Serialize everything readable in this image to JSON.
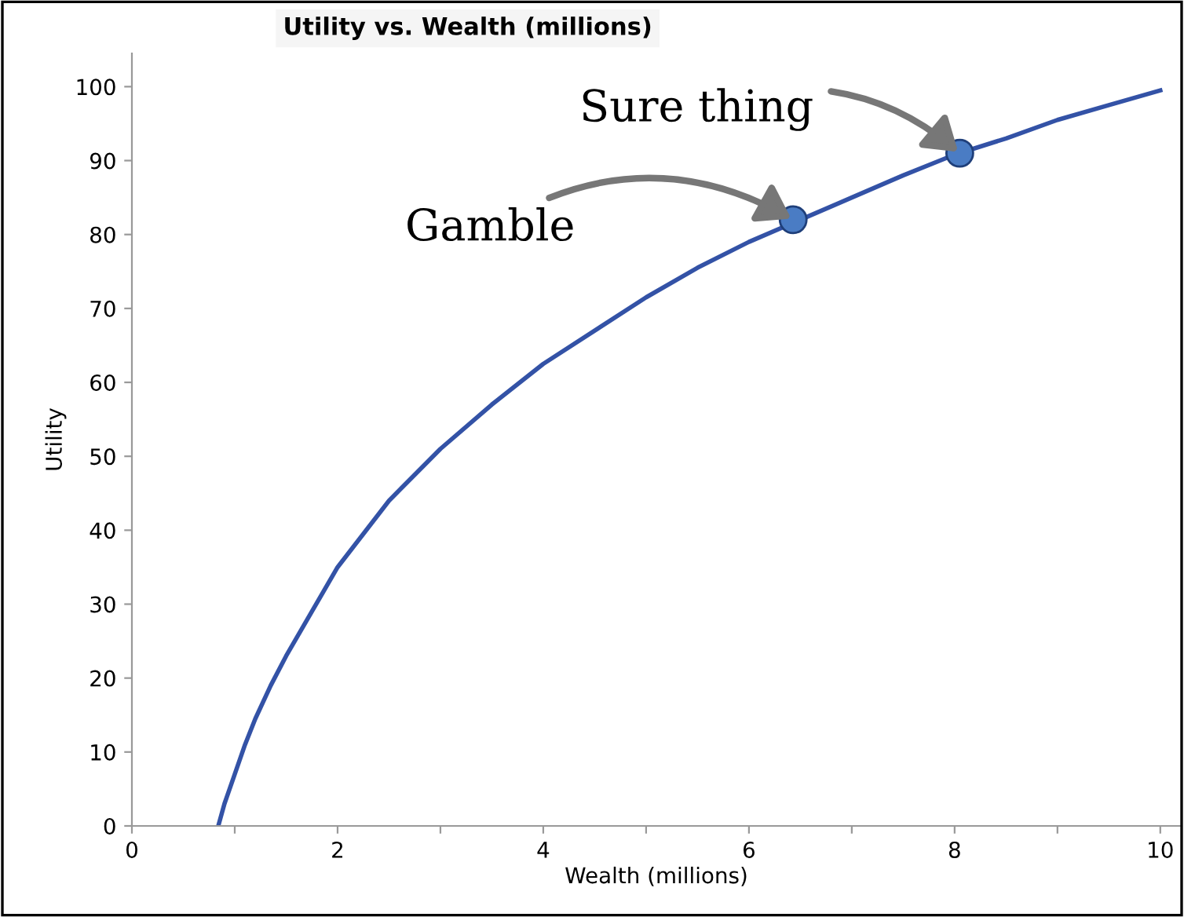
{
  "chart_data": {
    "type": "line",
    "title": "Utility vs. Wealth (millions)",
    "xlabel": "Wealth (millions)",
    "ylabel": "Utility",
    "series": [
      {
        "color": "#3352a6",
        "x": [
          0.84,
          0.9,
          1.0,
          1.1,
          1.2,
          1.35,
          1.5,
          1.75,
          2,
          2.5,
          3,
          3.5,
          4,
          4.5,
          5,
          5.5,
          6,
          6.5,
          7,
          7.5,
          8,
          8.5,
          9,
          9.5,
          10
        ],
        "values": [
          0,
          3,
          7,
          11,
          14.5,
          19,
          23,
          29,
          35,
          44,
          51,
          57,
          62.5,
          67,
          71.5,
          75.5,
          79,
          82,
          85,
          88,
          90.8,
          93,
          95.5,
          97.5,
          99.5
        ]
      },
      {
        "type": "scatter",
        "color": "#4a7cc4",
        "marker": "circle",
        "x": [
          6.43,
          8.05
        ],
        "values": [
          82,
          91
        ]
      }
    ],
    "annotations": [
      {
        "text": "Gamble",
        "x": 6.43,
        "y": 82
      },
      {
        "text": "Sure thing",
        "x": 8.05,
        "y": 91
      }
    ],
    "xlim": [
      0,
      10.2
    ],
    "ylim": [
      0,
      104.5
    ],
    "xticks": [
      0,
      {
        "value": 1,
        "label": null
      },
      2,
      {
        "value": 3,
        "label": null
      },
      4,
      {
        "value": 5,
        "label": null
      },
      6,
      {
        "value": 7,
        "label": null
      },
      8,
      {
        "value": 9,
        "label": null
      },
      10
    ],
    "yticks": [
      0,
      10,
      20,
      30,
      40,
      50,
      60,
      70,
      80,
      90,
      100
    ],
    "grid": false,
    "legend": false
  }
}
